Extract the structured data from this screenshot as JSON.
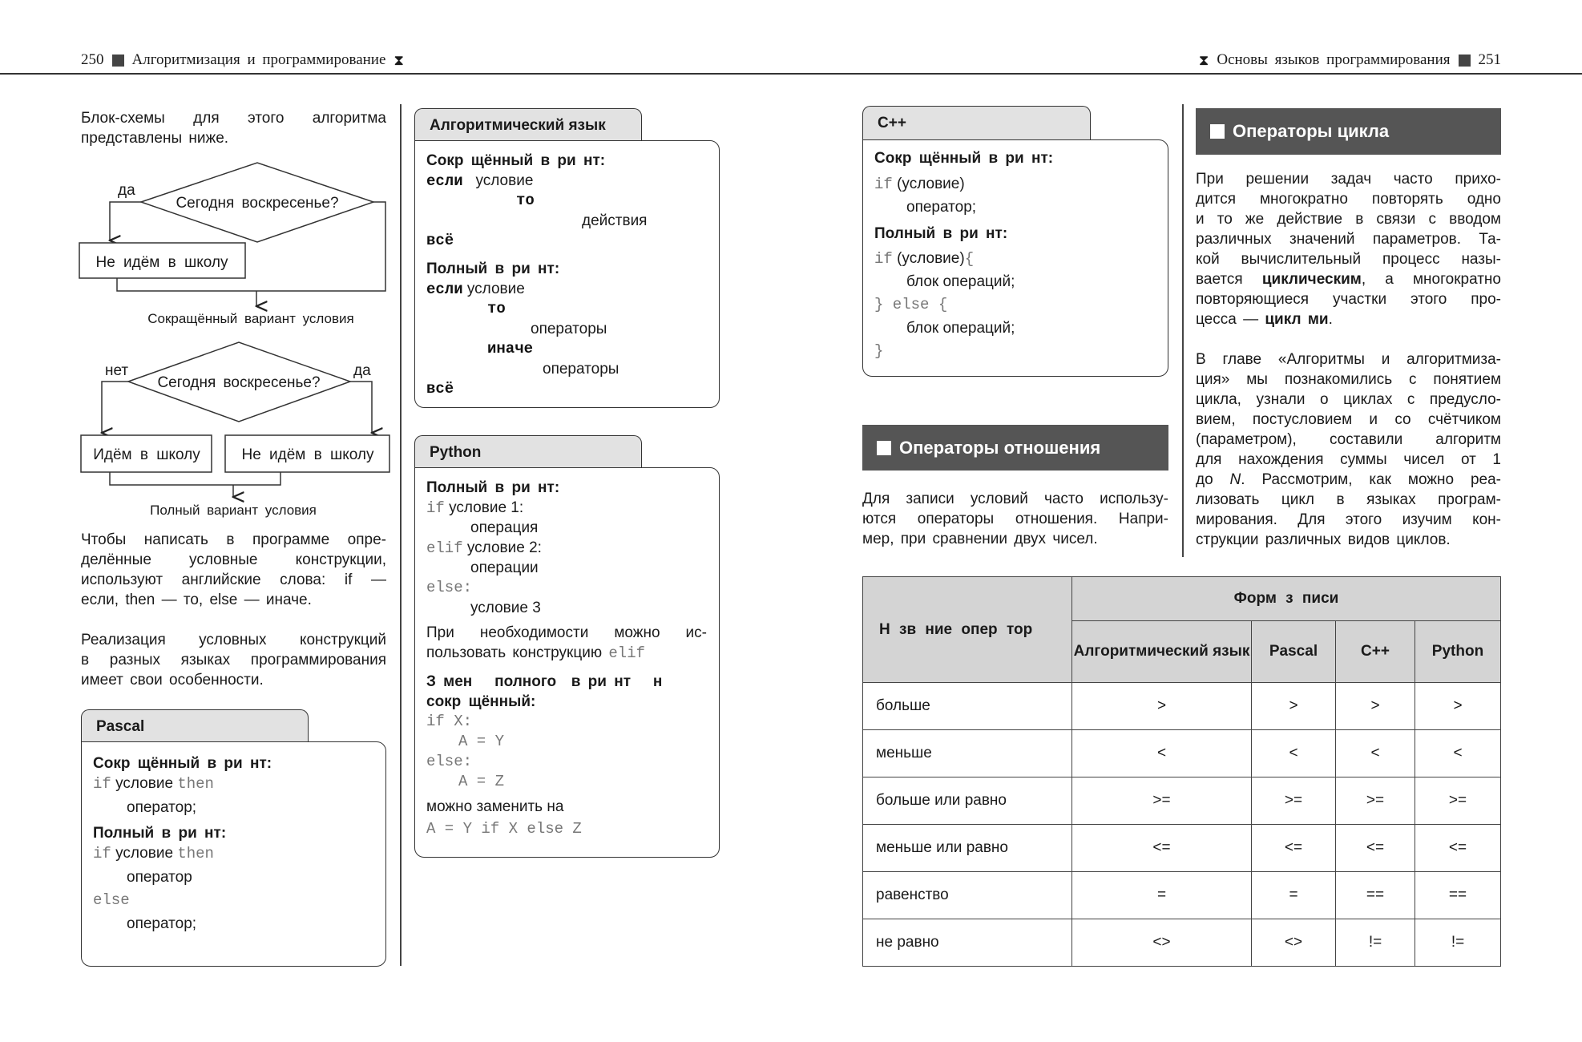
{
  "header": {
    "left_page": "250",
    "left_title": "Алгоритмизация и программирование",
    "right_title": "Основы языков программирования",
    "right_page": "251"
  },
  "left": {
    "intro": [
      "Блок-схемы для этого алгоритма",
      "представлены ниже."
    ],
    "flow1": {
      "question": "Сегодня воскресенье?",
      "yes": "да",
      "action": "Не идём в школу",
      "caption": "Сокращённый вариант условия"
    },
    "flow2": {
      "question": "Сегодня воскресенье?",
      "no": "нет",
      "yes": "да",
      "action_no": "Идём в школу",
      "action_yes": "Не идём в школу",
      "caption": "Полный вариант условия"
    },
    "para1": [
      "Чтобы написать в программе опре-",
      "делённые условные конструкции,",
      "используют английские слова: if —",
      "если, then — то, else — иначе."
    ],
    "para2": [
      "Реализация условных конструкций",
      "в разных языках программирования",
      "имеет свои особенности."
    ]
  },
  "alg": {
    "title": "Алгоритмический язык",
    "short_label": "Сокр щённый в ри нт:",
    "full_label": "Полный в ри нт:",
    "kw_if": "если",
    "kw_then": "то",
    "kw_else": "иначе",
    "kw_end": "всё",
    "cond": "условие",
    "actions": "действия",
    "ops": "операторы"
  },
  "python": {
    "title": "Python",
    "full_label": "Полный в ри нт:",
    "l1a": "if",
    "l1b": "условие 1:",
    "l2": "операция",
    "l3a": "elif",
    "l3b": "условие 2:",
    "l4": "операции",
    "l5": "else:",
    "l6": "условие 3",
    "note": [
      "При необходимости можно ис-",
      "пользовать конструкцию "
    ],
    "note_code": "elif",
    "replace_label": [
      "З мен   полного  в ри нт   н",
      "сокр щённый:"
    ],
    "c1": "if X:",
    "c2": "A = Y",
    "c3": "else:",
    "c4": "A = Z",
    "replace_with": "можно заменить на",
    "c5": "A = Y if X else Z"
  },
  "pascal": {
    "title": "Pascal",
    "short_label": "Сокр щённый в ри нт:",
    "full_label": "Полный в ри нт:",
    "kw_if": "if",
    "cond": "условие",
    "kw_then": "then",
    "op1": "оператор;",
    "op2": "оператор",
    "kw_else": "else",
    "op3": "оператор;"
  },
  "cpp": {
    "title": "C++",
    "short_label": "Сокр щённый в ри нт:",
    "full_label": "Полный в ри нт:",
    "kw_if": "if",
    "cond": "(условие)",
    "cond2": "(условие)",
    "brace_open": "{",
    "op": "оператор;",
    "block": "блок операций;",
    "else_line": "} else {",
    "brace_close": "}"
  },
  "relations": {
    "heading": "Операторы отношения",
    "text": [
      "Для записи условий часто использу-",
      "ются операторы отношения. Напри-",
      "мер, при сравнении двух чисел."
    ]
  },
  "loops": {
    "heading": "Операторы цикла",
    "p1": [
      "При решении задач часто прихо-",
      "дится многократно повторять одно",
      "и то же действие в связи с вводом",
      "различных значений параметров. Та-",
      "кой вычислительный процесс назы-"
    ],
    "p1_l6a": "вается ",
    "p1_l6b": "циклическим",
    "p1_l6c": ", а многократно",
    "p1_l7": "повторяющиеся участки этого про-",
    "p1_l8a": "цесса — ",
    "p1_l8b": "цикл ми",
    "p1_l8c": ".",
    "p2": [
      "В главе «Алгоритмы и алгоритмиза-",
      "ция» мы познакомились с понятием",
      "цикла, узнали о циклах с предусло-",
      "вием, постусловием и со счётчиком",
      "(параметром), составили алгоритм",
      "для нахождения суммы чисел от 1"
    ],
    "p2_l7a": "до ",
    "p2_l7b": "N",
    "p2_l7c": ". Рассмотрим, как можно реа-",
    "p2_rest": [
      "лизовать цикл в языках програм-",
      "мирования. Для этого изучим кон-",
      "струкции различных видов циклов."
    ]
  },
  "table": {
    "col_name": "Н зв ние опер тор",
    "col_group": "Форм   з писи",
    "cols": [
      "Алгоритмический язык",
      "Pascal",
      "C++",
      "Python"
    ],
    "rows": [
      [
        "больше",
        ">",
        ">",
        ">",
        ">"
      ],
      [
        "меньше",
        "<",
        "<",
        "<",
        "<"
      ],
      [
        "больше или равно",
        ">=",
        ">=",
        ">=",
        ">="
      ],
      [
        "меньше или равно",
        "<=",
        "<=",
        "<=",
        "<="
      ],
      [
        "равенство",
        "=",
        "=",
        "==",
        "=="
      ],
      [
        "не равно",
        "<>",
        "<>",
        "!=",
        "!="
      ]
    ]
  }
}
